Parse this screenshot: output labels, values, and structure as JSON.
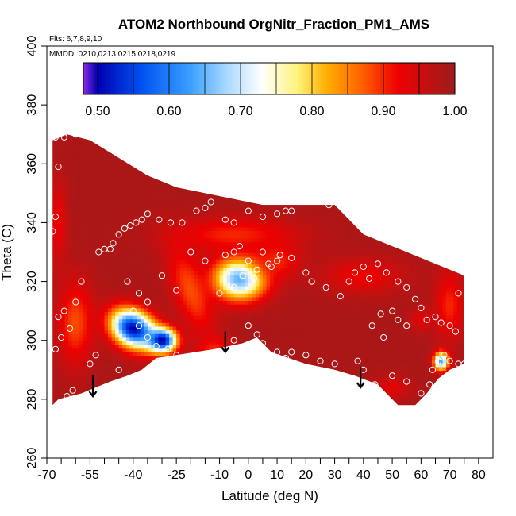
{
  "chart_data": {
    "type": "heatmap",
    "title": "ATOM2 Northbound OrgNitr_Fraction_PM1_AMS",
    "flights_label": "Flts: 6,7,8,9,10",
    "dates_label": "MMDD: 0210,0213,0215,0218,0219",
    "xlabel": "Latitude (deg N)",
    "ylabel": "Theta (C)",
    "xlim": [
      -70,
      85
    ],
    "ylim": [
      260,
      400
    ],
    "x_ticks": [
      -70,
      -55,
      -40,
      -25,
      -10,
      0,
      10,
      20,
      30,
      40,
      50,
      60,
      70,
      80
    ],
    "x_tick_labels": [
      "-70",
      "-55",
      "-40",
      "-25",
      "-10",
      "0",
      "10",
      "20",
      "30",
      "40",
      "50",
      "60",
      "70",
      "80"
    ],
    "x_minor_ticks": [
      -65,
      -60,
      -50,
      -45,
      -35,
      -30,
      -20,
      -15,
      -5,
      5,
      15,
      25,
      35,
      45,
      55,
      65,
      75
    ],
    "y_ticks": [
      260,
      280,
      300,
      320,
      340,
      360,
      380,
      400
    ],
    "y_tick_labels": [
      "260",
      "280",
      "300",
      "320",
      "340",
      "360",
      "380",
      "400"
    ],
    "colorbar": {
      "range": [
        0.48,
        1.0
      ],
      "ticks": [
        0.5,
        0.6,
        0.7,
        0.8,
        0.9,
        1.0
      ],
      "tick_labels": [
        "0.50",
        "0.60",
        "0.70",
        "0.80",
        "0.90",
        "1.00"
      ],
      "segment_breaks": [
        0.48,
        0.5,
        0.55,
        0.6,
        0.65,
        0.7,
        0.75,
        0.8,
        0.85,
        0.9,
        0.95,
        1.0
      ],
      "color_stops": [
        {
          "v": 0.48,
          "c": "#8a2be2"
        },
        {
          "v": 0.5,
          "c": "#0000b0"
        },
        {
          "v": 0.56,
          "c": "#0050f0"
        },
        {
          "v": 0.63,
          "c": "#3aa0ff"
        },
        {
          "v": 0.68,
          "c": "#a8d8ff"
        },
        {
          "v": 0.73,
          "c": "#ffffff"
        },
        {
          "v": 0.78,
          "c": "#fff27a"
        },
        {
          "v": 0.82,
          "c": "#ffb000"
        },
        {
          "v": 0.87,
          "c": "#ff6000"
        },
        {
          "v": 0.92,
          "c": "#ee0000"
        },
        {
          "v": 0.96,
          "c": "#c41010"
        },
        {
          "v": 1.0,
          "c": "#9c1c1c"
        }
      ]
    },
    "data_region": {
      "lower_boundary": [
        [
          -68,
          278
        ],
        [
          -66,
          280
        ],
        [
          -58,
          282
        ],
        [
          -48,
          286
        ],
        [
          -42,
          288
        ],
        [
          -37,
          290
        ],
        [
          -32,
          294
        ],
        [
          -25,
          295
        ],
        [
          -12,
          297
        ],
        [
          -2,
          299
        ],
        [
          3,
          301
        ],
        [
          8,
          296
        ],
        [
          20,
          292
        ],
        [
          30,
          290
        ],
        [
          37,
          288
        ],
        [
          45,
          285
        ],
        [
          52,
          278
        ],
        [
          58,
          278
        ],
        [
          62,
          282
        ],
        [
          66,
          287
        ],
        [
          70,
          290
        ],
        [
          75,
          292
        ]
      ],
      "upper_boundary": [
        [
          -68,
          368
        ],
        [
          -63,
          370
        ],
        [
          -55,
          368
        ],
        [
          -45,
          362
        ],
        [
          -35,
          356
        ],
        [
          -25,
          352
        ],
        [
          -15,
          350
        ],
        [
          -5,
          348
        ],
        [
          5,
          346
        ],
        [
          15,
          346
        ],
        [
          25,
          346
        ],
        [
          30,
          346
        ],
        [
          40,
          336
        ],
        [
          50,
          332
        ],
        [
          60,
          328
        ],
        [
          75,
          322
        ]
      ]
    },
    "field_base": 0.985,
    "field_features": [
      {
        "lat": -40,
        "theta": 304,
        "value": 0.5,
        "rx": 8,
        "ry": 6,
        "rot": -30
      },
      {
        "lat": -30,
        "theta": 300,
        "value": 0.49,
        "rx": 5,
        "ry": 4,
        "rot": 0
      },
      {
        "lat": -3,
        "theta": 321,
        "value": 0.64,
        "rx": 9,
        "ry": 7,
        "rot": 0
      },
      {
        "lat": 67,
        "theta": 293,
        "value": 0.62,
        "rx": 2.5,
        "ry": 3,
        "rot": 0
      },
      {
        "lat": -60,
        "theta": 306,
        "value": 0.88,
        "rx": 6,
        "ry": 14,
        "rot": 0
      },
      {
        "lat": -20,
        "theta": 317,
        "value": 0.88,
        "rx": 6,
        "ry": 16,
        "rot": 20
      },
      {
        "lat": -5,
        "theta": 336,
        "value": 0.9,
        "rx": 22,
        "ry": 6,
        "rot": 0
      },
      {
        "lat": 10,
        "theta": 327,
        "value": 0.9,
        "rx": 8,
        "ry": 6,
        "rot": 0
      },
      {
        "lat": 40,
        "theta": 322,
        "value": 0.92,
        "rx": 14,
        "ry": 6,
        "rot": 0
      },
      {
        "lat": 70,
        "theta": 312,
        "value": 0.9,
        "rx": 5,
        "ry": 12,
        "rot": 0
      },
      {
        "lat": -66,
        "theta": 340,
        "value": 0.92,
        "rx": 3,
        "ry": 14,
        "rot": 0
      },
      {
        "lat": -12,
        "theta": 297,
        "value": 0.9,
        "rx": 6,
        "ry": 4,
        "rot": 0
      },
      {
        "lat": 50,
        "theta": 284,
        "value": 0.93,
        "rx": 6,
        "ry": 4,
        "rot": 0
      },
      {
        "lat": 60,
        "theta": 307,
        "value": 0.93,
        "rx": 4,
        "ry": 4,
        "rot": 0
      }
    ],
    "observation_points": [
      [
        -67,
        369
      ],
      [
        -64,
        369
      ],
      [
        -60,
        370
      ],
      [
        -67,
        342
      ],
      [
        -68,
        337
      ],
      [
        -66,
        359
      ],
      [
        -64,
        310
      ],
      [
        -62,
        304
      ],
      [
        -60,
        313
      ],
      [
        -58,
        320
      ],
      [
        -55,
        292
      ],
      [
        -53,
        295
      ],
      [
        -63,
        281
      ],
      [
        -61,
        283
      ],
      [
        -65,
        301
      ],
      [
        -67,
        297
      ],
      [
        -66,
        308
      ],
      [
        -52,
        330
      ],
      [
        -50,
        331
      ],
      [
        -48,
        331
      ],
      [
        -47,
        333
      ],
      [
        -45,
        336
      ],
      [
        -43,
        338
      ],
      [
        -41,
        339
      ],
      [
        -39,
        340
      ],
      [
        -37,
        341
      ],
      [
        -35,
        343
      ],
      [
        -31,
        341
      ],
      [
        -27,
        340
      ],
      [
        -23,
        340
      ],
      [
        -18,
        344
      ],
      [
        -15,
        345
      ],
      [
        -13,
        347
      ],
      [
        -8,
        341
      ],
      [
        -5,
        340
      ],
      [
        0,
        344
      ],
      [
        5,
        342
      ],
      [
        10,
        343
      ],
      [
        13,
        344
      ],
      [
        15,
        344
      ],
      [
        28,
        346
      ],
      [
        -42,
        320
      ],
      [
        -38,
        316
      ],
      [
        -35,
        313
      ],
      [
        -30,
        322
      ],
      [
        -25,
        317
      ],
      [
        -20,
        330
      ],
      [
        -15,
        327
      ],
      [
        -8,
        329
      ],
      [
        -3,
        332
      ],
      [
        -5,
        330
      ],
      [
        0,
        327
      ],
      [
        3,
        324
      ],
      [
        5,
        330
      ],
      [
        7,
        326
      ],
      [
        8,
        325
      ],
      [
        10,
        327
      ],
      [
        11,
        329
      ],
      [
        15,
        328
      ],
      [
        -2,
        322
      ],
      [
        2,
        321
      ],
      [
        -5,
        318
      ],
      [
        -10,
        316
      ],
      [
        -40,
        310
      ],
      [
        -38,
        305
      ],
      [
        -35,
        301
      ],
      [
        -32,
        298
      ],
      [
        -28,
        297
      ],
      [
        -25,
        295
      ],
      [
        -45,
        290
      ],
      [
        -43,
        286
      ],
      [
        -48,
        282
      ],
      [
        -50,
        284
      ],
      [
        0,
        305
      ],
      [
        3,
        302
      ],
      [
        -5,
        300
      ],
      [
        5,
        299
      ],
      [
        10,
        296
      ],
      [
        13,
        294
      ],
      [
        20,
        323
      ],
      [
        22,
        320
      ],
      [
        27,
        318
      ],
      [
        32,
        315
      ],
      [
        35,
        320
      ],
      [
        37,
        323
      ],
      [
        40,
        325
      ],
      [
        42,
        321
      ],
      [
        45,
        326
      ],
      [
        48,
        323
      ],
      [
        52,
        320
      ],
      [
        55,
        318
      ],
      [
        58,
        314
      ],
      [
        60,
        311
      ],
      [
        62,
        307
      ],
      [
        65,
        308
      ],
      [
        67,
        306
      ],
      [
        70,
        305
      ],
      [
        72,
        303
      ],
      [
        73,
        316
      ],
      [
        75,
        323
      ],
      [
        50,
        310
      ],
      [
        52,
        307
      ],
      [
        46,
        309
      ],
      [
        55,
        305
      ],
      [
        43,
        305
      ],
      [
        47,
        301
      ],
      [
        38,
        293
      ],
      [
        40,
        290
      ],
      [
        30,
        292
      ],
      [
        25,
        293
      ],
      [
        20,
        295
      ],
      [
        15,
        296
      ],
      [
        44,
        285
      ],
      [
        50,
        288
      ],
      [
        55,
        286
      ],
      [
        60,
        282
      ],
      [
        62,
        279
      ],
      [
        64,
        290
      ],
      [
        66,
        293
      ],
      [
        68,
        295
      ],
      [
        70,
        293
      ],
      [
        73,
        292
      ],
      [
        75,
        292
      ],
      [
        63,
        285
      ],
      [
        65,
        283
      ]
    ],
    "arrows": [
      {
        "lat": -54,
        "theta_from": 288,
        "theta_to": 281
      },
      {
        "lat": -8,
        "theta_from": 303,
        "theta_to": 296
      },
      {
        "lat": 39,
        "theta_from": 291,
        "theta_to": 284
      }
    ],
    "colors": {
      "outside": "#ffffff",
      "points": "#ffffff",
      "arrows": "#000000",
      "axes": "#000000"
    }
  }
}
